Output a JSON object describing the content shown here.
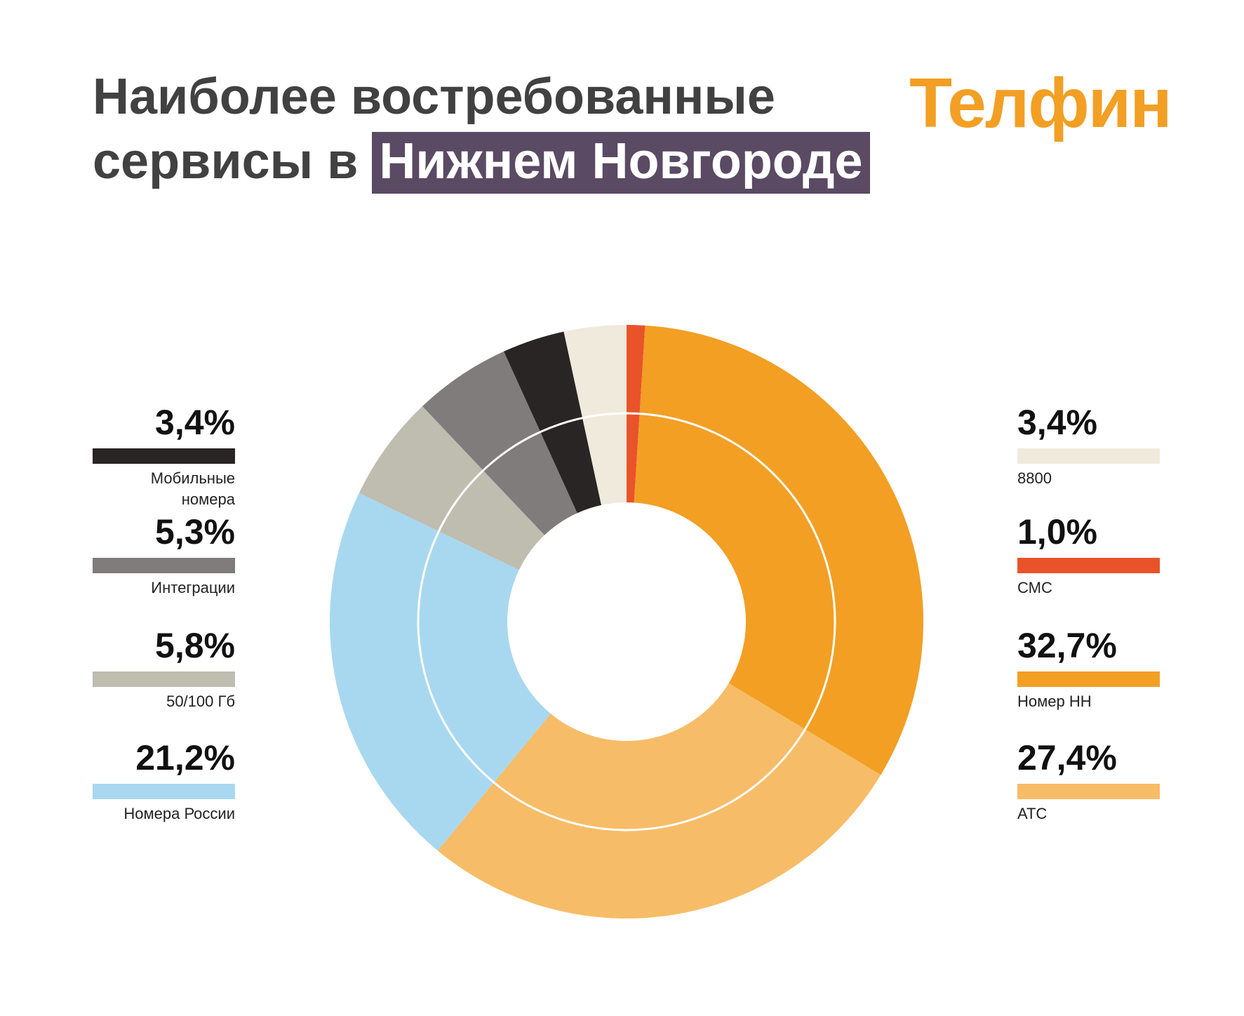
{
  "title": {
    "line1": "Наиболее востребованные",
    "line2_prefix": "сервисы в",
    "line2_highlight": "Нижнем Новгороде"
  },
  "logo": {
    "text": "Телфин"
  },
  "colors": {
    "accent_title_bg": "#5a4a63",
    "logo": "#f29f24"
  },
  "chart_data": {
    "type": "donut",
    "unit": "%",
    "series": [
      {
        "label": "СМС",
        "value": 1.0,
        "display": "1,0%",
        "color": "#e9532a"
      },
      {
        "label": "Номер НН",
        "value": 32.7,
        "display": "32,7%",
        "color": "#f29f24"
      },
      {
        "label": "АТС",
        "value": 27.4,
        "display": "27,4%",
        "color": "#f7bc67"
      },
      {
        "label": "Номера России",
        "value": 21.2,
        "display": "21,2%",
        "color": "#a8d8ef"
      },
      {
        "label": "50/100 Гб",
        "value": 5.8,
        "display": "5,8%",
        "color": "#bfbcb0"
      },
      {
        "label": "Интеграции",
        "value": 5.3,
        "display": "5,3%",
        "color": "#807c7c"
      },
      {
        "label": "Мобильные номера",
        "value": 3.4,
        "display": "3,4%",
        "color": "#292524"
      },
      {
        "label": "8800",
        "value": 3.4,
        "display": "3,4%",
        "color": "#efeadb"
      }
    ],
    "legend_left": [
      {
        "value": "3,4%",
        "label": "Мобильные номера",
        "color": "#292524"
      },
      {
        "value": "5,3%",
        "label": "Интеграции",
        "color": "#807c7c"
      },
      {
        "value": "5,8%",
        "label": "50/100 Гб",
        "color": "#bfbcb0"
      },
      {
        "value": "21,2%",
        "label": "Номера России",
        "color": "#a8d8ef"
      }
    ],
    "legend_right": [
      {
        "value": "3,4%",
        "label": "8800",
        "color": "#efeadb"
      },
      {
        "value": "1,0%",
        "label": "СМС",
        "color": "#e9532a"
      },
      {
        "value": "32,7%",
        "label": "Номер НН",
        "color": "#f29f24"
      },
      {
        "value": "27,4%",
        "label": "АТС",
        "color": "#f7bc67"
      }
    ]
  }
}
